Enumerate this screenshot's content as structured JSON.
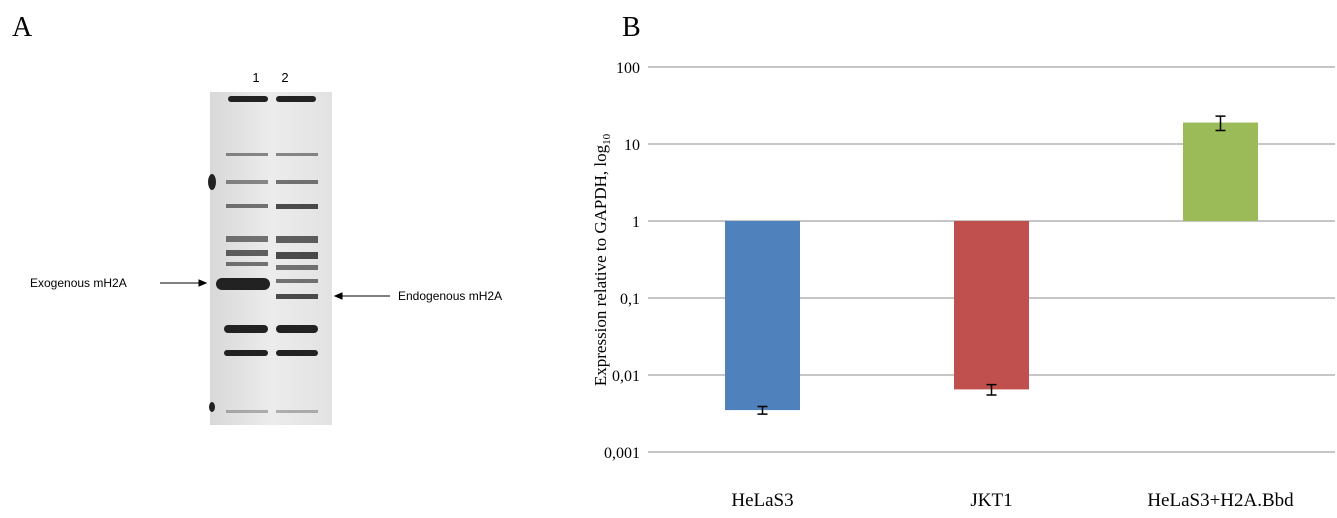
{
  "panel_a": {
    "label": "A",
    "lanes": [
      "1",
      "2"
    ],
    "annotations": [
      "Exogenous mH2A",
      "Endogenous mH2A"
    ]
  },
  "chart_data": {
    "type": "bar",
    "panel_label": "B",
    "ylabel": "Expression  relative  to GAPDH, log",
    "ylabel_subscript": "10",
    "categories": [
      "HeLaS3",
      "JKT1",
      "HeLaS3+H2A.Bbd"
    ],
    "values": [
      0.0035,
      0.0065,
      19
    ],
    "errors": [
      0.0004,
      0.001,
      4
    ],
    "colors": [
      "#4f81bd",
      "#c0504d",
      "#9bbb59"
    ],
    "log_scale": true,
    "grid": true,
    "ylim": [
      0.001,
      100
    ],
    "yticks": [
      {
        "value": 0.001,
        "label": "0,001"
      },
      {
        "value": 0.01,
        "label": "0,01"
      },
      {
        "value": 0.1,
        "label": "0,1"
      },
      1,
      10,
      100
    ]
  }
}
